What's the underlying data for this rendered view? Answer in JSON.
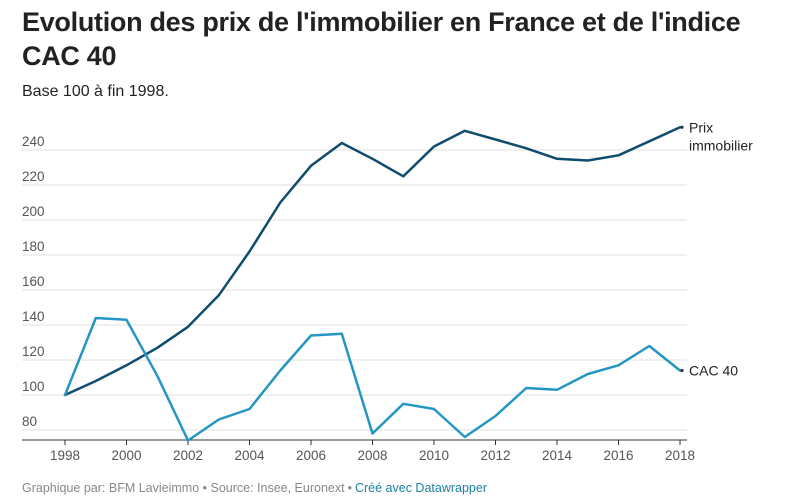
{
  "header": {
    "title": "Evolution des prix de l'immobilier en France et de l'indice CAC 40",
    "subtitle": "Base 100 à fin 1998."
  },
  "footer": {
    "source_text": "Graphique par: BFM Lavieimmo • Source: Insee, Euronext",
    "separator": "•",
    "credit": "Créé avec Datawrapper"
  },
  "chart_data": {
    "type": "line",
    "x": [
      1998,
      1999,
      2000,
      2001,
      2002,
      2003,
      2004,
      2005,
      2006,
      2007,
      2008,
      2009,
      2010,
      2011,
      2012,
      2013,
      2014,
      2015,
      2016,
      2017,
      2018
    ],
    "series": [
      {
        "name": "Prix immobilier",
        "label_lines": [
          "Prix",
          "immobilier"
        ],
        "color": "#0f4c6e",
        "values": [
          100,
          108,
          117,
          127,
          139,
          157,
          182,
          210,
          231,
          244,
          235,
          225,
          242,
          251,
          246,
          241,
          235,
          234,
          237,
          245,
          253
        ]
      },
      {
        "name": "CAC 40",
        "label_lines": [
          "CAC 40"
        ],
        "color": "#2596c4",
        "values": [
          100,
          144,
          143,
          111,
          74,
          86,
          92,
          114,
          134,
          135,
          78,
          95,
          92,
          76,
          88,
          104,
          103,
          112,
          117,
          128,
          114
        ]
      }
    ],
    "x_ticks": [
      "1998",
      "2000",
      "2002",
      "2004",
      "2006",
      "2008",
      "2010",
      "2012",
      "2014",
      "2016",
      "2018"
    ],
    "y_ticks": [
      "80",
      "100",
      "120",
      "140",
      "160",
      "180",
      "200",
      "220",
      "240"
    ],
    "xlim": [
      1998,
      2018
    ],
    "ylim": [
      73,
      258
    ],
    "grid": true,
    "xlabel": "",
    "ylabel": ""
  }
}
